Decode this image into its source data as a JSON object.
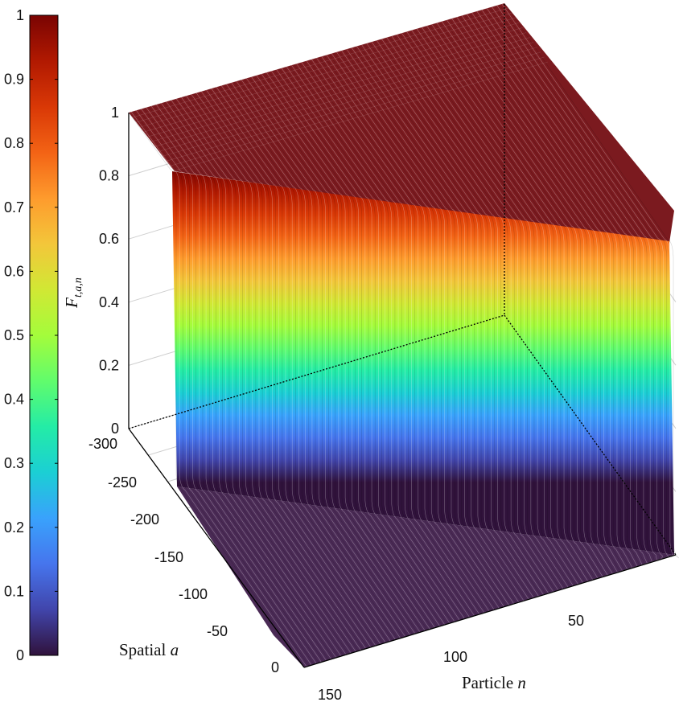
{
  "chart_data": {
    "type": "surface",
    "title": "",
    "zlabel": "F",
    "zlabel_subscript": "t,a,n",
    "xlabel_prefix": "Spatial ",
    "xlabel_var": "a",
    "ylabel_prefix": "Particle ",
    "ylabel_var": "n",
    "x_axis": {
      "name": "Spatial a",
      "range": [
        -300,
        150
      ],
      "ticks": [
        -300,
        -250,
        -200,
        -150,
        -100,
        -50,
        0,
        150
      ]
    },
    "y_axis": {
      "name": "Particle n",
      "range": [
        0,
        150
      ],
      "ticks": [
        50,
        100
      ]
    },
    "z_axis": {
      "range": [
        0,
        1
      ],
      "ticks": [
        0,
        0.2,
        0.4,
        0.6,
        0.8,
        1
      ]
    },
    "z_tick_labels": [
      "0",
      "0.2",
      "0.4",
      "0.6",
      "0.8",
      "1"
    ],
    "x_tick_labels": [
      "-300",
      "-250",
      "-200",
      "-150",
      "-100",
      "-50",
      "0",
      "150"
    ],
    "y_tick_labels": [
      "50",
      "100"
    ],
    "colorbar": {
      "range": [
        0,
        1
      ],
      "ticks": [
        "0",
        "0.1",
        "0.2",
        "0.3",
        "0.4",
        "0.5",
        "0.6",
        "0.7",
        "0.8",
        "0.9",
        "1"
      ],
      "colormap": "turbo",
      "colors": [
        "#30123b",
        "#4145ab",
        "#4675ed",
        "#39a2fc",
        "#1bcfd4",
        "#24eca6",
        "#61fc6c",
        "#a4fc3b",
        "#d1e834",
        "#f3c63a",
        "#fe9b2d",
        "#f36315",
        "#d93806",
        "#b11901",
        "#7a0402"
      ]
    },
    "surface": {
      "description_value": "F rises from 0 to 1 as a step across the spatial coordinate a, for every particle n",
      "z_low": 0,
      "z_high": 1
    },
    "grid": true
  }
}
